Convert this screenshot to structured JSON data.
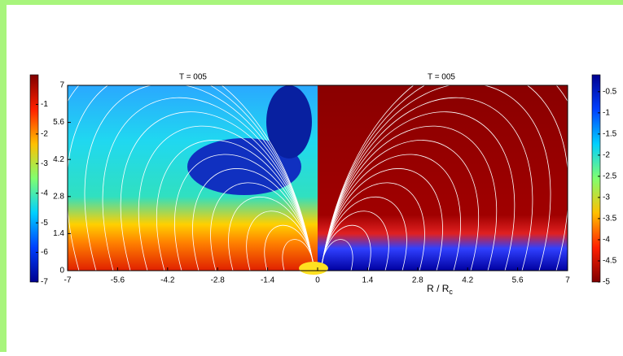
{
  "chart_data": {
    "type": "heatmap",
    "panels": [
      {
        "title": "T = 005"
      },
      {
        "title": "T = 005"
      }
    ],
    "xlabel": {
      "text": "R / R",
      "subscript": "c"
    },
    "xlim": [
      -7,
      7
    ],
    "xticks": [
      -7,
      -5.6,
      -4.2,
      -2.8,
      -1.4,
      0,
      1.4,
      2.8,
      4.2,
      5.6,
      7
    ],
    "ylim": [
      0,
      7
    ],
    "yticks": [
      0,
      1.4,
      2.8,
      4.2,
      5.6,
      7
    ],
    "colorbars": [
      {
        "lim": [
          -7,
          0
        ],
        "ticks": [
          -1,
          -2,
          -3,
          -4,
          -5,
          -6,
          -7
        ],
        "colors": [
          "#7f0000",
          "#ff2000",
          "#ffc000",
          "#80ff70",
          "#00d0ff",
          "#0040ff",
          "#00008f"
        ]
      },
      {
        "lim": [
          -5,
          -0.1
        ],
        "ticks": [
          -0.5,
          -1,
          -1.5,
          -2,
          -2.5,
          -3,
          -3.5,
          -4,
          -4.5,
          -5
        ],
        "colors": [
          "#00008f",
          "#0040ff",
          "#00d0ff",
          "#80ff70",
          "#ffc000",
          "#ff2000",
          "#7f0000"
        ]
      }
    ]
  }
}
